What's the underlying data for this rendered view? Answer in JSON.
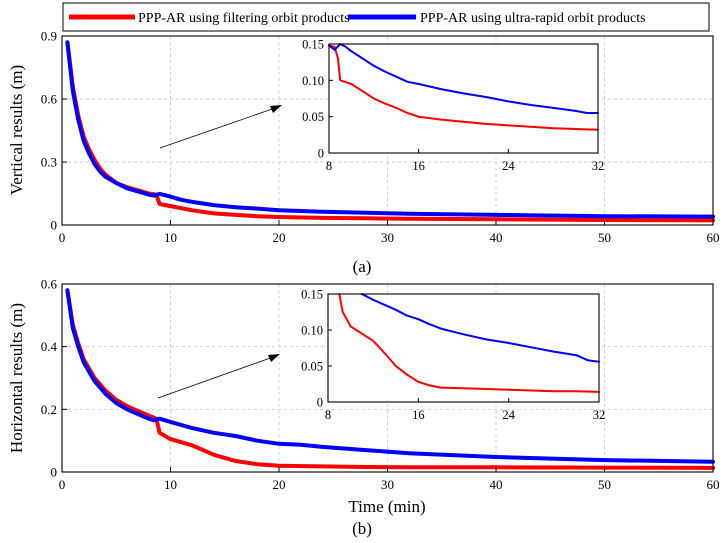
{
  "chart_data": [
    {
      "type": "line",
      "panel": "(a)",
      "caption": "(a)",
      "title": "",
      "xlabel": "",
      "ylabel": "Vertical results (m)",
      "xlim": [
        0,
        60
      ],
      "ylim": [
        0,
        0.9
      ],
      "xticks": [
        "0",
        "10",
        "20",
        "30",
        "40",
        "50",
        "60"
      ],
      "yticks": [
        "0",
        "0.3",
        "0.6",
        "0.9"
      ],
      "grid": true,
      "legend": {
        "placement": "top",
        "entries": [
          "PPP-AR using filtering orbit products",
          "PPP-AR using ultra-rapid orbit products"
        ]
      },
      "series": [
        {
          "name": "PPP-AR using filtering orbit products",
          "color": "#ff0000",
          "x": [
            0.5,
            1,
            1.5,
            2,
            2.5,
            3,
            3.5,
            4,
            5,
            6,
            7,
            8,
            8.7,
            9,
            10,
            12,
            14,
            16,
            18,
            20,
            24,
            28,
            32,
            40,
            50,
            60
          ],
          "y": [
            0.87,
            0.66,
            0.52,
            0.42,
            0.36,
            0.31,
            0.27,
            0.24,
            0.2,
            0.18,
            0.165,
            0.15,
            0.145,
            0.1,
            0.09,
            0.07,
            0.055,
            0.048,
            0.042,
            0.038,
            0.034,
            0.032,
            0.03,
            0.027,
            0.024,
            0.022
          ]
        },
        {
          "name": "PPP-AR using ultra-rapid orbit products",
          "color": "#0000ff",
          "x": [
            0.5,
            1,
            1.5,
            2,
            2.5,
            3,
            3.5,
            4,
            5,
            6,
            7,
            8,
            8.5,
            9,
            9.5,
            10,
            11,
            12,
            14,
            16,
            18,
            20,
            24,
            28,
            32,
            40,
            50,
            60
          ],
          "y": [
            0.87,
            0.64,
            0.5,
            0.4,
            0.34,
            0.29,
            0.255,
            0.23,
            0.2,
            0.175,
            0.16,
            0.145,
            0.14,
            0.148,
            0.142,
            0.135,
            0.12,
            0.11,
            0.095,
            0.085,
            0.078,
            0.07,
            0.063,
            0.058,
            0.054,
            0.048,
            0.042,
            0.04
          ]
        }
      ],
      "inset": {
        "xlim": [
          8,
          32
        ],
        "ylim": [
          0,
          0.15
        ],
        "xticks": [
          "8",
          "16",
          "24",
          "32"
        ],
        "yticks": [
          "0",
          "0.05",
          "0.10",
          "0.15"
        ],
        "series": [
          {
            "name": "PPP-AR using filtering orbit products",
            "color": "#ff0000",
            "x": [
              8,
              8.5,
              8.8,
              9,
              10,
              11,
              12,
              13,
              14,
              15,
              16,
              18,
              20,
              22,
              24,
              26,
              28,
              30,
              32
            ],
            "y": [
              0.148,
              0.146,
              0.13,
              0.1,
              0.095,
              0.085,
              0.075,
              0.068,
              0.062,
              0.055,
              0.05,
              0.046,
              0.043,
              0.04,
              0.038,
              0.036,
              0.034,
              0.033,
              0.032
            ]
          },
          {
            "name": "PPP-AR using ultra-rapid orbit products",
            "color": "#0000ff",
            "x": [
              8,
              8.5,
              9,
              9.5,
              10,
              11,
              12,
              13,
              14,
              15,
              16,
              18,
              20,
              22,
              24,
              26,
              28,
              30,
              31,
              32
            ],
            "y": [
              0.148,
              0.142,
              0.15,
              0.146,
              0.14,
              0.13,
              0.12,
              0.112,
              0.105,
              0.098,
              0.095,
              0.088,
              0.082,
              0.077,
              0.071,
              0.066,
              0.062,
              0.058,
              0.055,
              0.055
            ]
          }
        ]
      }
    },
    {
      "type": "line",
      "panel": "(b)",
      "caption": "(b)",
      "title": "",
      "xlabel": "Time (min)",
      "ylabel": "Horizontal results (m)",
      "xlim": [
        0,
        60
      ],
      "ylim": [
        0,
        0.6
      ],
      "xticks": [
        "0",
        "10",
        "20",
        "30",
        "40",
        "50",
        "60"
      ],
      "yticks": [
        "0",
        "0.2",
        "0.4",
        "0.6"
      ],
      "grid": true,
      "series": [
        {
          "name": "PPP-AR using filtering orbit products",
          "color": "#ff0000",
          "x": [
            0.5,
            1,
            1.5,
            2,
            2.5,
            3,
            4,
            5,
            6,
            7,
            8,
            8.7,
            9,
            10,
            11,
            12,
            13,
            14,
            16,
            18,
            20,
            24,
            28,
            32,
            40,
            50,
            60
          ],
          "y": [
            0.58,
            0.47,
            0.41,
            0.36,
            0.33,
            0.3,
            0.26,
            0.23,
            0.21,
            0.195,
            0.18,
            0.17,
            0.125,
            0.105,
            0.095,
            0.085,
            0.07,
            0.055,
            0.035,
            0.025,
            0.02,
            0.018,
            0.016,
            0.015,
            0.015,
            0.014,
            0.013
          ]
        },
        {
          "name": "PPP-AR using ultra-rapid orbit products",
          "color": "#0000ff",
          "x": [
            0.5,
            1,
            1.5,
            2,
            2.5,
            3,
            4,
            5,
            6,
            7,
            8,
            8.5,
            9,
            10,
            11,
            12,
            14,
            16,
            18,
            20,
            22,
            24,
            28,
            32,
            40,
            50,
            60
          ],
          "y": [
            0.58,
            0.46,
            0.4,
            0.35,
            0.32,
            0.29,
            0.25,
            0.22,
            0.2,
            0.185,
            0.17,
            0.165,
            0.17,
            0.16,
            0.15,
            0.14,
            0.125,
            0.115,
            0.1,
            0.09,
            0.087,
            0.08,
            0.07,
            0.06,
            0.048,
            0.038,
            0.033
          ]
        }
      ],
      "inset": {
        "xlim": [
          8,
          32
        ],
        "ylim": [
          0,
          0.15
        ],
        "xticks": [
          "8",
          "16",
          "24",
          "32"
        ],
        "yticks": [
          "0",
          "0.05",
          "0.10",
          "0.15"
        ],
        "series": [
          {
            "name": "PPP-AR using filtering orbit products",
            "color": "#ff0000",
            "x": [
              9,
              9.3,
              10,
              11,
              12,
              13,
              14,
              15,
              16,
              17,
              18,
              20,
              22,
              24,
              26,
              28,
              30,
              32
            ],
            "y": [
              0.15,
              0.125,
              0.105,
              0.095,
              0.085,
              0.068,
              0.05,
              0.038,
              0.028,
              0.023,
              0.02,
              0.019,
              0.018,
              0.017,
              0.016,
              0.015,
              0.015,
              0.014
            ]
          },
          {
            "name": "PPP-AR using ultra-rapid orbit products",
            "color": "#0000ff",
            "x": [
              11,
              12,
              13,
              14,
              15,
              16,
              17,
              18,
              20,
              22,
              24,
              26,
              28,
              30,
              31,
              32
            ],
            "y": [
              0.15,
              0.142,
              0.135,
              0.128,
              0.12,
              0.115,
              0.108,
              0.102,
              0.094,
              0.087,
              0.082,
              0.076,
              0.07,
              0.065,
              0.058,
              0.056
            ]
          }
        ]
      }
    }
  ]
}
